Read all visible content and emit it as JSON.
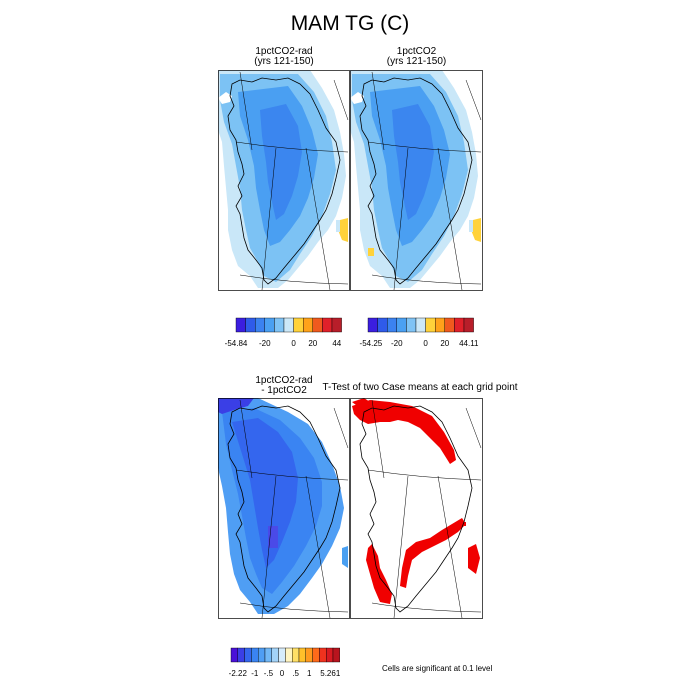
{
  "figure": {
    "title": "MAM TG (C)",
    "panels": [
      {
        "title_line1": "1pctCO2-rad",
        "title_line2": "(yrs 121-150)"
      },
      {
        "title_line1": "1pctCO2",
        "title_line2": "(yrs 121-150)"
      },
      {
        "title_line1": "1pctCO2-rad",
        "title_line2": "- 1pctCO2"
      },
      {
        "title_line1": "T-Test of two Case means at each grid point",
        "title_line2": ""
      }
    ],
    "significance_note": "Cells are significant at 0.1 level"
  },
  "chart_data": [
    {
      "type": "heatmap",
      "title": "1pctCO2-rad (yrs 121-150)",
      "colorbar": {
        "colors": [
          "#3b1ee0",
          "#2f5bea",
          "#3b82f0",
          "#4aa0f2",
          "#7fc3f5",
          "#cce8f8",
          "#ffd23a",
          "#ffa21a",
          "#f05a1e",
          "#e0202a",
          "#b81e2a"
        ],
        "ticks": [
          "-54.84",
          "-20",
          "0",
          "20",
          "44"
        ]
      }
    },
    {
      "type": "heatmap",
      "title": "1pctCO2 (yrs 121-150)",
      "colorbar": {
        "colors": [
          "#3b1ee0",
          "#2f5bea",
          "#3b82f0",
          "#4aa0f2",
          "#7fc3f5",
          "#cce8f8",
          "#ffd23a",
          "#ffa21a",
          "#f05a1e",
          "#e0202a",
          "#b81e2a"
        ],
        "ticks": [
          "-54.25",
          "-20",
          "0",
          "20",
          "44.11"
        ]
      }
    },
    {
      "type": "heatmap",
      "title": "1pctCO2-rad - 1pctCO2",
      "colorbar": {
        "colors": [
          "#4a10d8",
          "#3a3fe6",
          "#3466ee",
          "#3a84f2",
          "#4f9ef4",
          "#72b8f6",
          "#a3d3f8",
          "#d6ecfb",
          "#fff4c0",
          "#ffe066",
          "#ffc02a",
          "#ff9a1e",
          "#ff6a1a",
          "#f0321e",
          "#d81a22",
          "#b8141e"
        ],
        "ticks": [
          "-2.22",
          "-1",
          "-.5",
          "0",
          ".5",
          "1",
          "5.261"
        ]
      }
    },
    {
      "type": "heatmap",
      "title": "T-Test of two Case means at each grid point",
      "legend": "Cells are significant at 0.1 level"
    }
  ]
}
